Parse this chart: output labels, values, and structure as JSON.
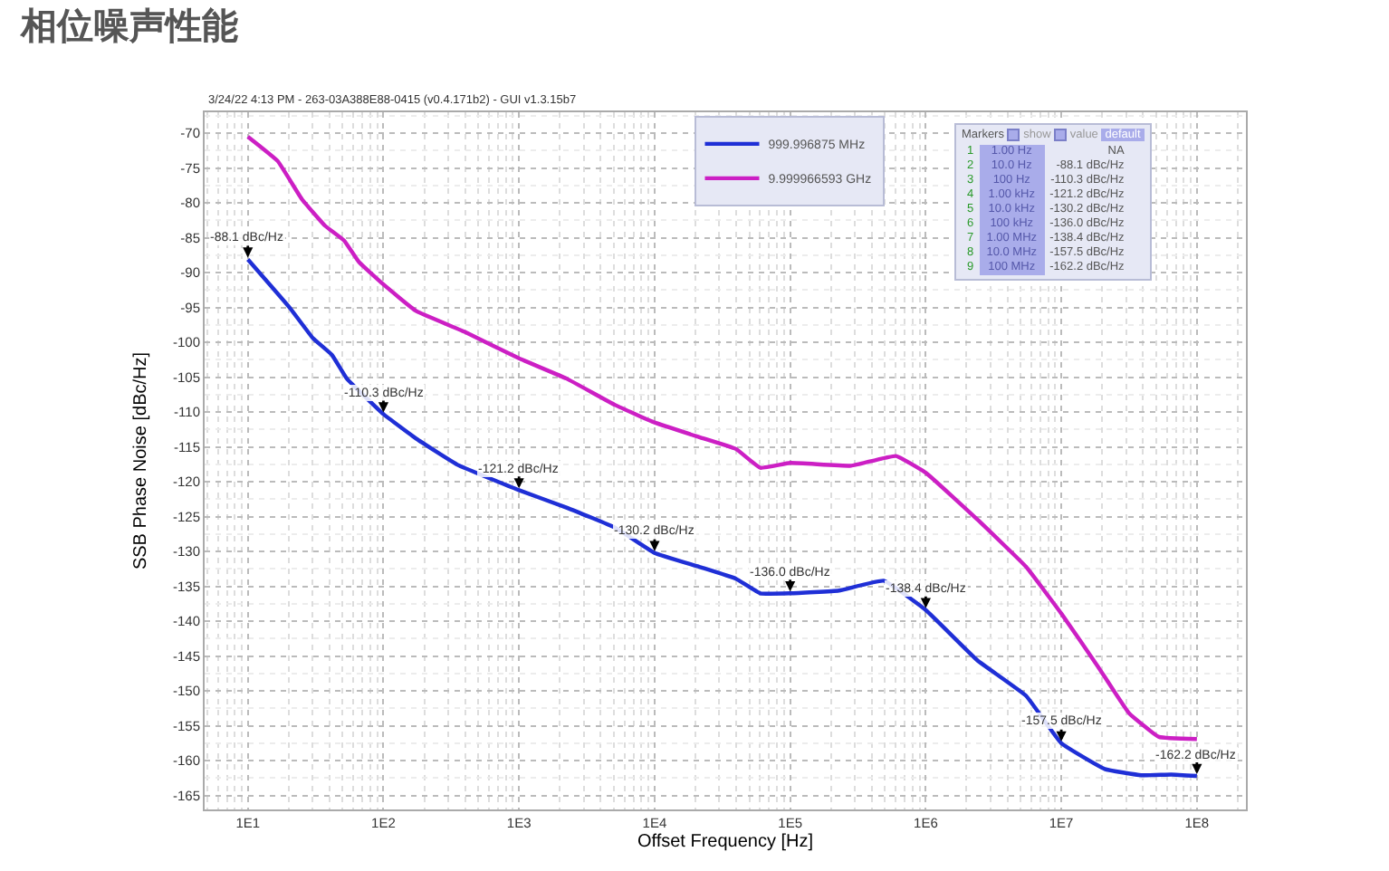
{
  "chart_data": {
    "type": "line",
    "title": "相位噪声性能",
    "xlabel": "Offset Frequency [Hz]",
    "ylabel": "SSB Phase Noise [dBc/Hz]",
    "log": "x",
    "grid": true,
    "legend": "top",
    "marker": "none",
    "line_style": "solid",
    "xlim": [
      4.8,
      230000000
    ],
    "xticks": [
      {
        "value": 10,
        "label": "1E1"
      },
      {
        "value": 100,
        "label": "1E2"
      },
      {
        "value": 1000,
        "label": "1E3"
      },
      {
        "value": 10000,
        "label": "1E4"
      },
      {
        "value": 100000,
        "label": "1E5"
      },
      {
        "value": 1000000,
        "label": "1E6"
      },
      {
        "value": 10000000,
        "label": "1E7"
      },
      {
        "value": 100000000,
        "label": "1E8"
      }
    ],
    "ylim": [
      -167,
      -67
    ],
    "yticks": [
      -70,
      -75,
      -80,
      -85,
      -90,
      -95,
      -100,
      -105,
      -110,
      -115,
      -120,
      -125,
      -130,
      -135,
      -140,
      -145,
      -150,
      -155,
      -160,
      -165
    ],
    "series": [
      {
        "name": "999.996875 MHz",
        "color": "#1f2fd6",
        "x": [
          10,
          20.3,
          30.2,
          41.7,
          53.7,
          100,
          174,
          355,
          1000,
          2239,
          5129,
          10000,
          21380,
          39810,
          60260,
          100000,
          229000,
          489800,
          1000000,
          2399000,
          5495000,
          10000000,
          20890000,
          38900000,
          64570000,
          100000000
        ],
        "values": [
          -88.1,
          -95,
          -99.4,
          -101.8,
          -105.2,
          -110.3,
          -113.8,
          -117.6,
          -121.2,
          -123.7,
          -126.6,
          -130.2,
          -132.2,
          -133.9,
          -136,
          -136,
          -135.6,
          -134.2,
          -138.4,
          -145.6,
          -150.7,
          -157.5,
          -161.2,
          -162.1,
          -162,
          -162.2
        ]
      },
      {
        "name": "9.999966593 GHz",
        "color": "#cc1fc4",
        "x": [
          10,
          16.6,
          25.1,
          37.2,
          51.3,
          66.1,
          100,
          174,
          398,
          1000,
          2239,
          5129,
          10000,
          21380,
          39810,
          60260,
          100000,
          281800,
          602600,
          1000000,
          2399000,
          5495000,
          10000000,
          18620000,
          31620000,
          52480000,
          100000000
        ],
        "values": [
          -70.5,
          -74,
          -79.5,
          -83.3,
          -85.4,
          -88.5,
          -91.7,
          -95.5,
          -98.5,
          -102.3,
          -105.2,
          -109,
          -111.5,
          -113.6,
          -115.3,
          -118,
          -117.3,
          -117.7,
          -116.3,
          -118.7,
          -125.4,
          -132.2,
          -138.9,
          -146.5,
          -153.2,
          -156.6,
          -156.9
        ]
      }
    ],
    "annotations": [
      "3/24/22 4:13 PM - 263-03A388E88-0415 (v0.4.171b2) - GUI v1.3.15b7",
      {
        "text": "-88.1 dBc/Hz",
        "x": 10,
        "y": -88.1
      },
      {
        "text": "-110.3 dBc/Hz",
        "x": 100,
        "y": -110.3
      },
      {
        "text": "-121.2 dBc/Hz",
        "x": 1000,
        "y": -121.2
      },
      {
        "text": "-130.2 dBc/Hz",
        "x": 10000,
        "y": -130.2
      },
      {
        "text": "-136.0 dBc/Hz",
        "x": 100000,
        "y": -136.0
      },
      {
        "text": "-138.4 dBc/Hz",
        "x": 1000000,
        "y": -138.4
      },
      {
        "text": "-157.5 dBc/Hz",
        "x": 10000000,
        "y": -157.5
      },
      {
        "text": "-162.2 dBc/Hz",
        "x": 100000000,
        "y": -162.2
      },
      "Markers",
      "show",
      "value",
      "default",
      "1",
      "1.00 Hz",
      "NA",
      "2",
      "10.0 Hz",
      "-88.1 dBc/Hz",
      "3",
      "100 Hz",
      "-110.3 dBc/Hz",
      "4",
      "1.00 kHz",
      "-121.2 dBc/Hz",
      "5",
      "10.0 kHz",
      "-130.2 dBc/Hz",
      "6",
      "100 kHz",
      "-136.0 dBc/Hz",
      "7",
      "1.00 MHz",
      "-138.4 dBc/Hz",
      "8",
      "10.0 MHz",
      "-157.5 dBc/Hz",
      "9",
      "100 MHz",
      "-162.2 dBc/Hz"
    ]
  }
}
